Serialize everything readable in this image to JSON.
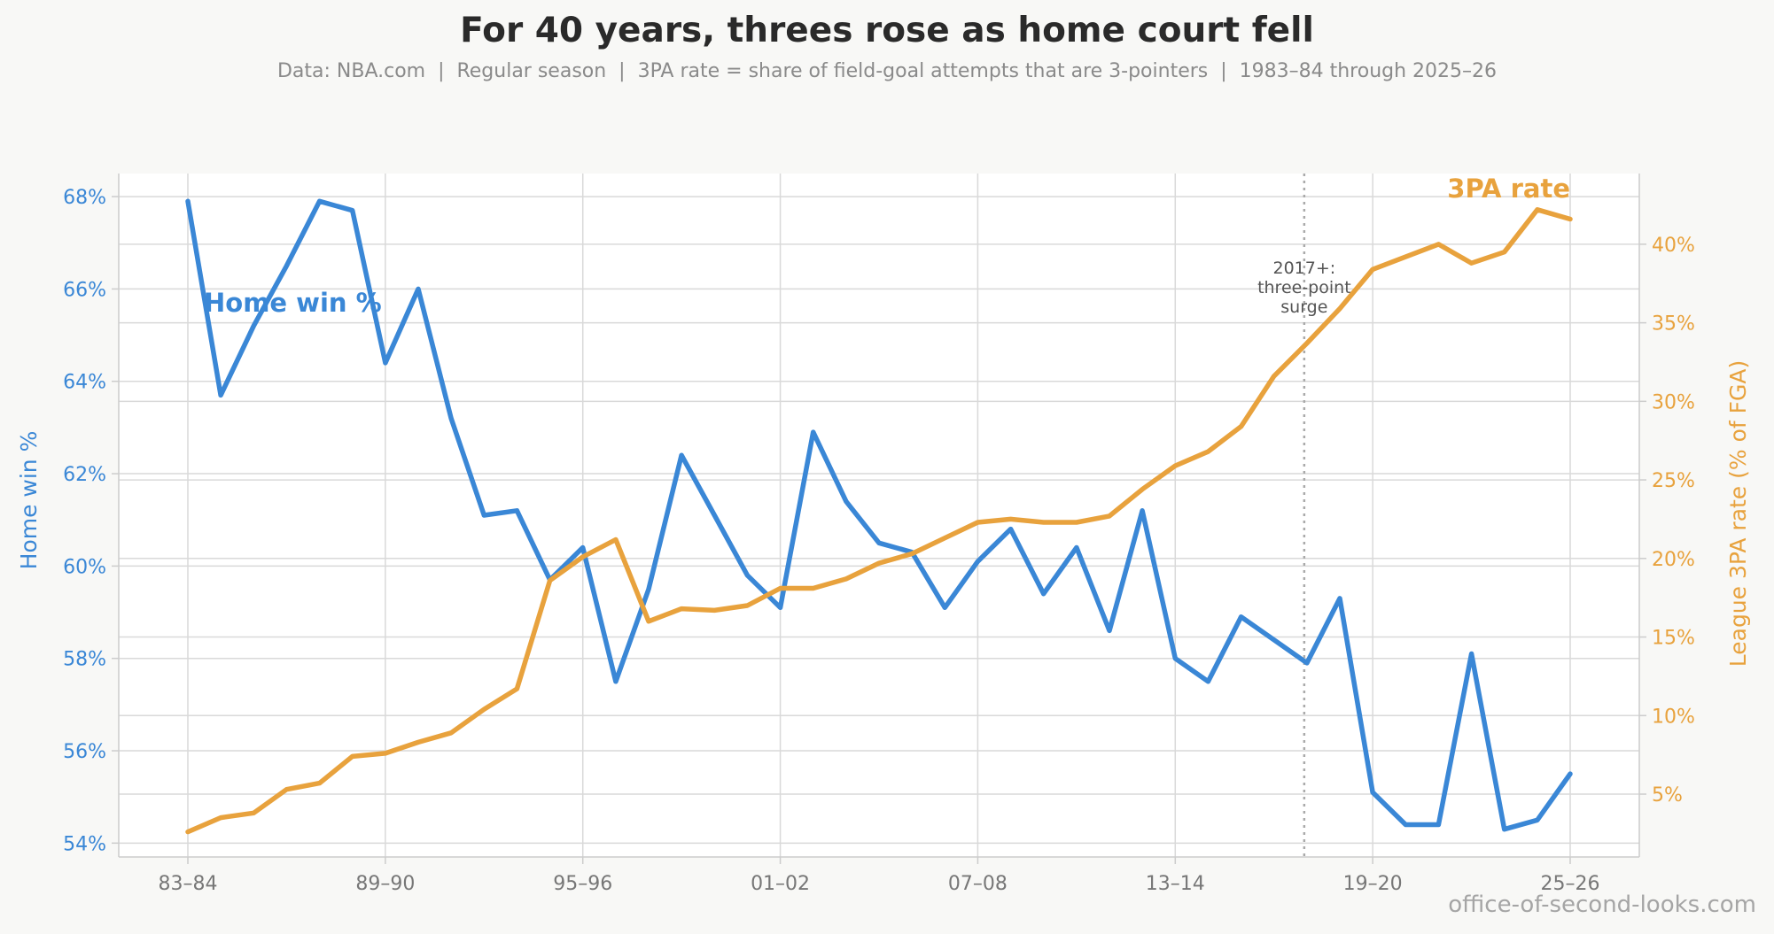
{
  "title": "For 40 years, threes rose as home court fell",
  "subtitle": "Data: NBA.com  |  Regular season  |  3PA rate = share of field-goal attempts that are 3-pointers  |  1983–84 through 2025–26",
  "watermark": "office-of-second-looks.com",
  "colors": {
    "home": "#3a87d6",
    "three": "#e8a23d",
    "grid": "#d9d9d9",
    "axis": "#cccccc",
    "text": "#777777"
  },
  "chart_data": {
    "type": "line",
    "x": [
      "83–84",
      "84–85",
      "85–86",
      "86–87",
      "87–88",
      "88–89",
      "89–90",
      "90–91",
      "91–92",
      "92–93",
      "93–94",
      "94–95",
      "95–96",
      "96–97",
      "97–98",
      "98–99",
      "99–00",
      "00–01",
      "01–02",
      "02–03",
      "03–04",
      "04–05",
      "05–06",
      "06–07",
      "07–08",
      "08–09",
      "09–10",
      "10–11",
      "11–12",
      "12–13",
      "13–14",
      "14–15",
      "15–16",
      "16–17",
      "17–18",
      "18–19",
      "19–20",
      "20–21",
      "21–22",
      "22–23",
      "23–24",
      "24–25",
      "25–26"
    ],
    "xticks": [
      "83–84",
      "89–90",
      "95–96",
      "01–02",
      "07–08",
      "13–14",
      "19–20",
      "25–26"
    ],
    "series": [
      {
        "name": "Home win %",
        "axis": "left",
        "values": [
          67.9,
          63.7,
          65.2,
          66.5,
          67.9,
          67.7,
          64.4,
          66.0,
          63.2,
          61.1,
          61.2,
          59.7,
          60.4,
          57.5,
          59.5,
          62.4,
          61.1,
          59.8,
          59.1,
          62.9,
          61.4,
          60.5,
          60.3,
          59.1,
          60.1,
          60.8,
          59.4,
          60.4,
          58.6,
          61.2,
          58.0,
          57.5,
          58.9,
          58.4,
          57.9,
          59.3,
          55.1,
          54.4,
          54.4,
          58.1,
          54.3,
          54.5,
          55.5
        ]
      },
      {
        "name": "3PA rate",
        "axis": "right",
        "values": [
          2.6,
          3.5,
          3.8,
          5.3,
          5.7,
          7.4,
          7.6,
          8.3,
          8.9,
          10.4,
          11.7,
          18.6,
          20.1,
          21.2,
          16.0,
          16.8,
          16.7,
          17.0,
          18.1,
          18.1,
          18.7,
          19.7,
          20.3,
          21.3,
          22.3,
          22.5,
          22.3,
          22.3,
          22.7,
          24.4,
          25.9,
          26.8,
          28.4,
          31.6,
          33.7,
          35.9,
          38.4,
          39.2,
          40.0,
          38.8,
          39.5,
          42.2,
          41.6
        ]
      }
    ],
    "yleft": {
      "label": "Home win %",
      "lim": [
        53.7,
        68.5
      ],
      "ticks": [
        54,
        56,
        58,
        60,
        62,
        64,
        66,
        68
      ],
      "suffix": "%"
    },
    "yright": {
      "label": "League 3PA rate (% of FGA)",
      "lim": [
        1.0,
        44.5
      ],
      "ticks": [
        5,
        10,
        15,
        20,
        25,
        30,
        35,
        40
      ],
      "suffix": "%"
    },
    "annotation": {
      "x": "17–18",
      "lines": [
        "2017+:",
        "three-point",
        "surge"
      ]
    },
    "labels": {
      "home": "Home win %",
      "three": "3PA rate"
    },
    "grid": true
  }
}
